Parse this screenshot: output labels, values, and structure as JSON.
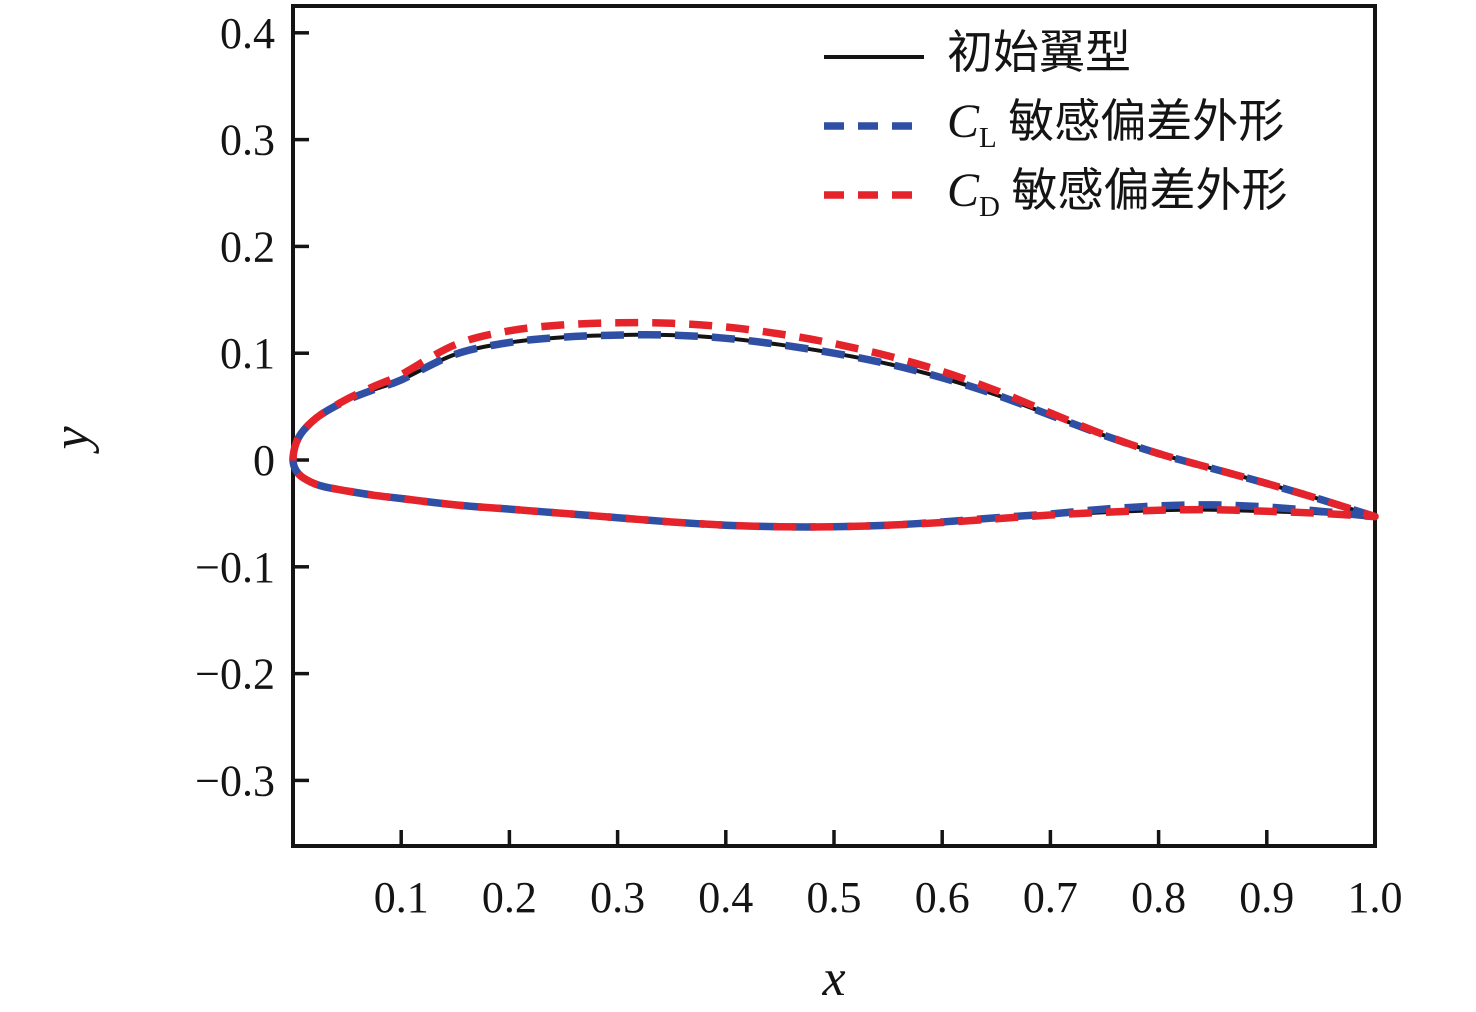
{
  "figure": {
    "background": "#ffffff",
    "axes": {
      "xlabel": "x",
      "ylabel": "y",
      "xlim": [
        0,
        1.0
      ],
      "ylim": [
        -0.3614,
        0.4251
      ],
      "x_tick_values": [
        0.1,
        0.2,
        0.3,
        0.4,
        0.5,
        0.6,
        0.7,
        0.8,
        0.9,
        1.0
      ],
      "x_tick_labels": [
        "0.1",
        "0.2",
        "0.3",
        "0.4",
        "0.5",
        "0.6",
        "0.7",
        "0.8",
        "0.9",
        "1.0"
      ],
      "y_tick_values": [
        0.4,
        0.3,
        0.2,
        0.1,
        0,
        -0.1,
        -0.2,
        -0.3
      ],
      "y_tick_labels": [
        "0.4",
        "0.3",
        "0.2",
        "0.1",
        "0",
        "−0.1",
        "−0.2",
        "−0.3"
      ],
      "spine_color": "#141414",
      "text_color": "#141414"
    },
    "legend": {
      "entries": [
        {
          "symbol": null,
          "subscript": null,
          "label": "初始翼型",
          "color": "#141414",
          "dash": null,
          "line_width": 4
        },
        {
          "symbol": "C",
          "subscript": "L",
          "label": " 敏感偏差外形",
          "color": "#2f4fa5",
          "dash": [
            20,
            14
          ],
          "line_width": 7.5
        },
        {
          "symbol": "C",
          "subscript": "D",
          "label": " 敏感偏差外形",
          "color": "#e4232b",
          "dash": [
            20,
            14
          ],
          "line_width": 7.5
        }
      ]
    }
  },
  "chart_data": {
    "type": "line",
    "title": "",
    "xlabel": "x",
    "ylabel": "y",
    "xlim": [
      0,
      1.0
    ],
    "ylim": [
      -0.3614,
      0.4251
    ],
    "grid": false,
    "legend_position": "upper-right",
    "description": "Airfoil contour comparison: baseline airfoil vs CL-sensitivity deviation shape vs CD-sensitivity deviation shape. Each series is a closed contour given by upper-surface and lower-surface y at shared x stations.",
    "x": [
      0,
      0.003,
      0.01,
      0.025,
      0.05,
      0.075,
      0.1,
      0.15,
      0.2,
      0.25,
      0.3,
      0.35,
      0.4,
      0.45,
      0.5,
      0.55,
      0.6,
      0.65,
      0.7,
      0.75,
      0.8,
      0.85,
      0.9,
      0.95,
      1.0
    ],
    "series": [
      {
        "name": "初始翼型",
        "line_style": "solid",
        "color": "#141414",
        "line_width": 4,
        "y_upper": [
          0,
          0.016,
          0.028,
          0.042,
          0.056,
          0.066,
          0.075,
          0.099,
          0.11,
          0.115,
          0.117,
          0.117,
          0.114,
          0.108,
          0.1,
          0.09,
          0.077,
          0.061,
          0.042,
          0.023,
          0.006,
          -0.008,
          -0.022,
          -0.037,
          -0.053
        ],
        "y_lower": [
          0,
          -0.01,
          -0.017,
          -0.024,
          -0.029,
          -0.033,
          -0.036,
          -0.042,
          -0.046,
          -0.05,
          -0.054,
          -0.058,
          -0.061,
          -0.0625,
          -0.0625,
          -0.061,
          -0.0585,
          -0.055,
          -0.0515,
          -0.049,
          -0.047,
          -0.0465,
          -0.048,
          -0.05,
          -0.053
        ]
      },
      {
        "name": "CL 敏感偏差外形",
        "line_style": "dashed",
        "color": "#2f4fa5",
        "line_width": 7.5,
        "y_upper": [
          0,
          0.016,
          0.028,
          0.042,
          0.056,
          0.066,
          0.075,
          0.099,
          0.11,
          0.115,
          0.117,
          0.117,
          0.114,
          0.108,
          0.1,
          0.09,
          0.077,
          0.061,
          0.042,
          0.023,
          0.006,
          -0.008,
          -0.022,
          -0.037,
          -0.053
        ],
        "y_lower": [
          0,
          -0.01,
          -0.017,
          -0.024,
          -0.029,
          -0.033,
          -0.036,
          -0.042,
          -0.046,
          -0.05,
          -0.054,
          -0.058,
          -0.061,
          -0.0625,
          -0.0625,
          -0.061,
          -0.058,
          -0.054,
          -0.0505,
          -0.046,
          -0.043,
          -0.042,
          -0.044,
          -0.048,
          -0.053
        ]
      },
      {
        "name": "CD 敏感偏差外形",
        "line_style": "dashed",
        "color": "#e4232b",
        "line_width": 7.5,
        "y_upper": [
          0,
          0.016,
          0.028,
          0.042,
          0.057,
          0.069,
          0.08,
          0.108,
          0.121,
          0.1265,
          0.1285,
          0.128,
          0.1245,
          0.118,
          0.109,
          0.0975,
          0.083,
          0.065,
          0.044,
          0.0235,
          0.006,
          -0.008,
          -0.022,
          -0.037,
          -0.053
        ],
        "y_lower": [
          0,
          -0.01,
          -0.017,
          -0.024,
          -0.029,
          -0.033,
          -0.036,
          -0.042,
          -0.046,
          -0.05,
          -0.054,
          -0.058,
          -0.061,
          -0.0625,
          -0.0625,
          -0.061,
          -0.0585,
          -0.055,
          -0.0515,
          -0.049,
          -0.047,
          -0.0465,
          -0.048,
          -0.05,
          -0.053
        ]
      }
    ]
  }
}
